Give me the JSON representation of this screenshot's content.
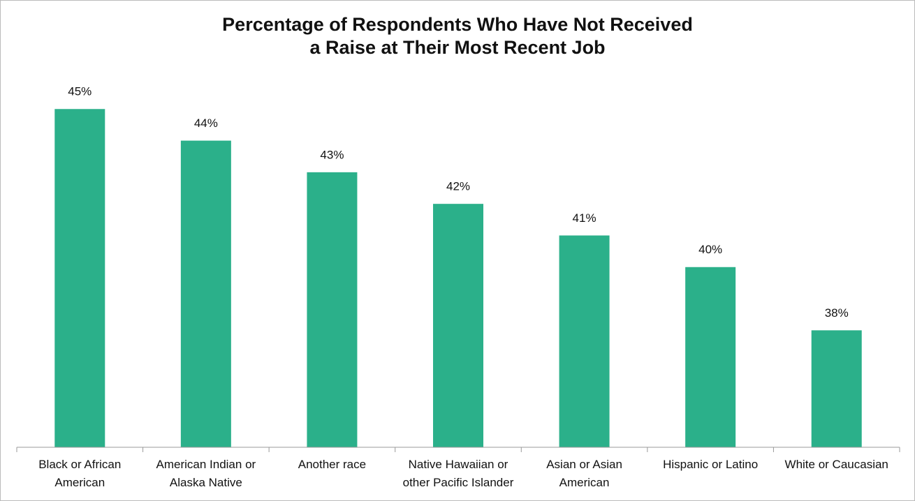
{
  "chart_data": {
    "type": "bar",
    "title": "Percentage of Respondents Who Have Not Received\na Raise at Their Most Recent Job",
    "categories": [
      "Black or African\nAmerican",
      "American Indian or\nAlaska Native",
      "Another race",
      "Native Hawaiian or\nother Pacific Islander",
      "Asian or Asian\nAmerican",
      "Hispanic or Latino",
      "White or Caucasian"
    ],
    "values": [
      45,
      44,
      43,
      42,
      41,
      40,
      38
    ],
    "value_labels": [
      "45%",
      "44%",
      "43%",
      "42%",
      "41%",
      "40%",
      "38%"
    ],
    "color": "#2bb08a",
    "ylim": [
      34.3,
      45.8
    ]
  }
}
